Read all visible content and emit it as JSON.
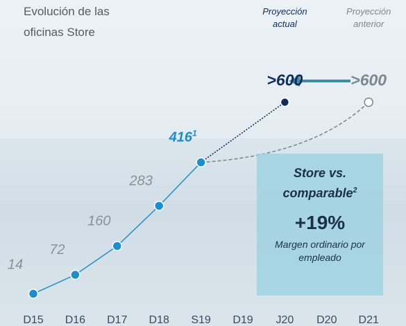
{
  "chart_data": {
    "type": "line",
    "title": "Evolución de las oficinas Store",
    "categories": [
      "D15",
      "D16",
      "D17",
      "D18",
      "S19",
      "D19",
      "J20",
      "D20",
      "D21"
    ],
    "values": [
      14,
      72,
      160,
      283,
      416,
      null,
      null,
      null,
      null
    ],
    "value_label_notes": [
      null,
      null,
      null,
      null,
      "1",
      null,
      null,
      null,
      null
    ],
    "color": "#1a8fd0",
    "ylim": [
      0,
      900
    ],
    "projections": [
      {
        "label": "Proyección actual",
        "x": "J20",
        "value": 600,
        "value_label": ">600",
        "color": "#0d2d5e"
      },
      {
        "label": "Proyección anterior",
        "x": "D21",
        "value": 600,
        "value_label": ">600",
        "color": "#7d8893"
      }
    ],
    "callout": {
      "title": "Store vs. comparable",
      "title_note": "2",
      "value": "+19%",
      "text": "Margen ordinario por empleado"
    }
  }
}
